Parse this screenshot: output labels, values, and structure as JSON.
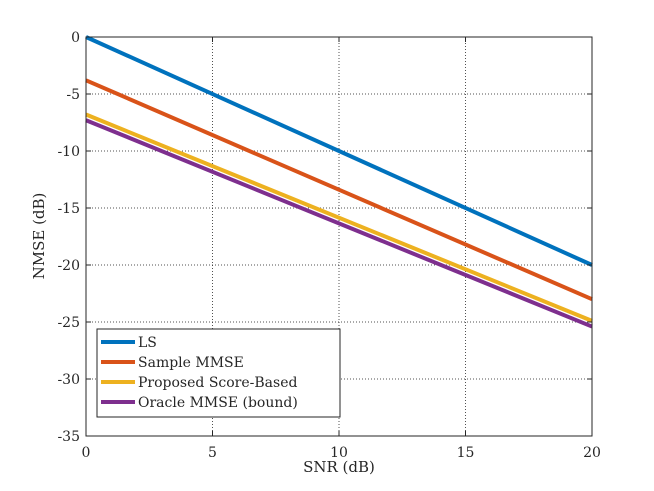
{
  "chart_data": {
    "type": "line",
    "title": "",
    "xlabel": "SNR (dB)",
    "ylabel": "NMSE (dB)",
    "xlim": [
      0,
      20
    ],
    "ylim": [
      -35,
      0
    ],
    "xticks": [
      0,
      5,
      10,
      15,
      20
    ],
    "yticks": [
      0,
      -5,
      -10,
      -15,
      -20,
      -25,
      -30,
      -35
    ],
    "grid": true,
    "legend_position": "bottom-left",
    "x": [
      0,
      20
    ],
    "series": [
      {
        "name": "LS",
        "color": "#0072BD",
        "values": [
          0,
          -20
        ]
      },
      {
        "name": "Sample MMSE",
        "color": "#D95319",
        "values": [
          -3.8,
          -23
        ]
      },
      {
        "name": "Proposed Score-Based",
        "color": "#EDB120",
        "values": [
          -6.8,
          -24.9
        ]
      },
      {
        "name": "Oracle MMSE (bound)",
        "color": "#7E2F8E",
        "values": [
          -7.3,
          -25.4
        ]
      }
    ]
  }
}
